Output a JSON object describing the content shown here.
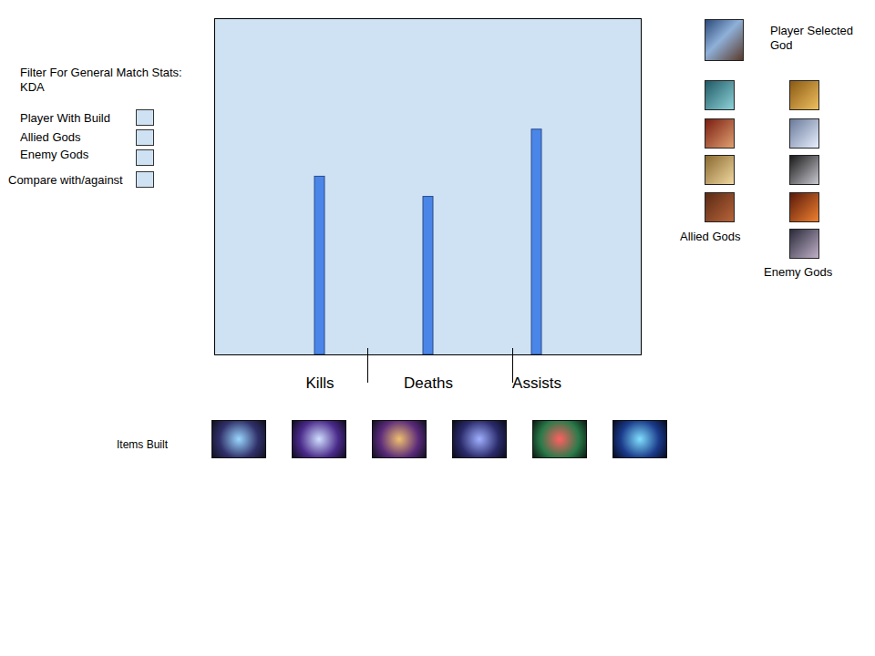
{
  "chart_data": {
    "type": "bar",
    "categories": [
      "Kills",
      "Deaths",
      "Assists"
    ],
    "values": [
      5.3,
      4.7,
      6.7
    ],
    "color": "#4a86e8",
    "ylim": [
      0,
      10
    ],
    "tick_labels": "x"
  },
  "filters": {
    "title": "Filter For General Match Stats:",
    "subtitle": "KDA",
    "options": [
      "Player With Build",
      "Allied Gods",
      "Enemy Gods",
      "Compare with/against"
    ]
  },
  "gods": {
    "selected_label": "Player Selected God",
    "allied_label": "Allied Gods",
    "enemy_label": "Enemy Gods"
  },
  "items": {
    "label": "Items Built"
  }
}
